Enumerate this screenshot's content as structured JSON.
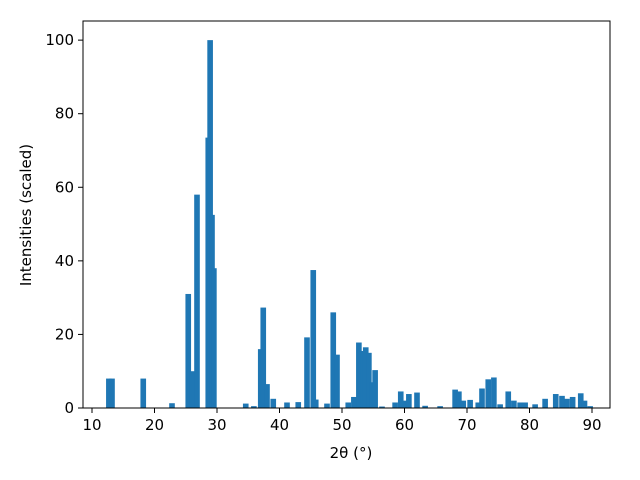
{
  "chart_data": {
    "type": "bar",
    "xlabel": "2θ (°)",
    "ylabel": "Intensities (scaled)",
    "x": [
      12.7,
      13.2,
      18.2,
      22.8,
      25.4,
      26.0,
      26.8,
      28.6,
      28.9,
      29.2,
      29.5,
      34.6,
      35.9,
      37.0,
      37.4,
      38.0,
      39.0,
      41.2,
      43.0,
      44.4,
      45.4,
      45.8,
      47.6,
      48.6,
      49.2,
      51.0,
      51.9,
      52.7,
      53.4,
      53.8,
      54.3,
      54.8,
      55.3,
      56.4,
      58.5,
      59.4,
      60.1,
      60.7,
      62.0,
      63.3,
      65.7,
      68.1,
      68.7,
      69.4,
      70.5,
      71.8,
      72.4,
      73.4,
      74.3,
      75.3,
      76.6,
      77.5,
      78.5,
      79.3,
      80.9,
      82.5,
      84.2,
      85.2,
      86.0,
      86.9,
      88.2,
      88.8,
      89.7
    ],
    "values": [
      8,
      8,
      8,
      1.3,
      31,
      10,
      58,
      73.5,
      100,
      52.5,
      38,
      1.2,
      0.5,
      16,
      27.3,
      6.5,
      2.5,
      1.5,
      1.6,
      19.2,
      37.5,
      2.3,
      1.2,
      26,
      14.5,
      1.5,
      3,
      17.8,
      15.5,
      16.5,
      15,
      7,
      10.3,
      0.4,
      1.5,
      4.5,
      2,
      3.8,
      4.2,
      0.6,
      0.5,
      5,
      4.5,
      2,
      2.2,
      1.5,
      5.3,
      7.8,
      8.3,
      1,
      4.5,
      2,
      1.5,
      1.5,
      1,
      2.5,
      3.8,
      3.3,
      2.5,
      3,
      4,
      2,
      0.5
    ],
    "color": "#1f77b4",
    "xlim": [
      8.56,
      92.88
    ],
    "ylim": [
      0,
      105.2
    ],
    "xticks": [
      10,
      20,
      30,
      40,
      50,
      60,
      70,
      80,
      90
    ],
    "yticks": [
      0,
      20,
      40,
      60,
      80,
      100
    ]
  }
}
